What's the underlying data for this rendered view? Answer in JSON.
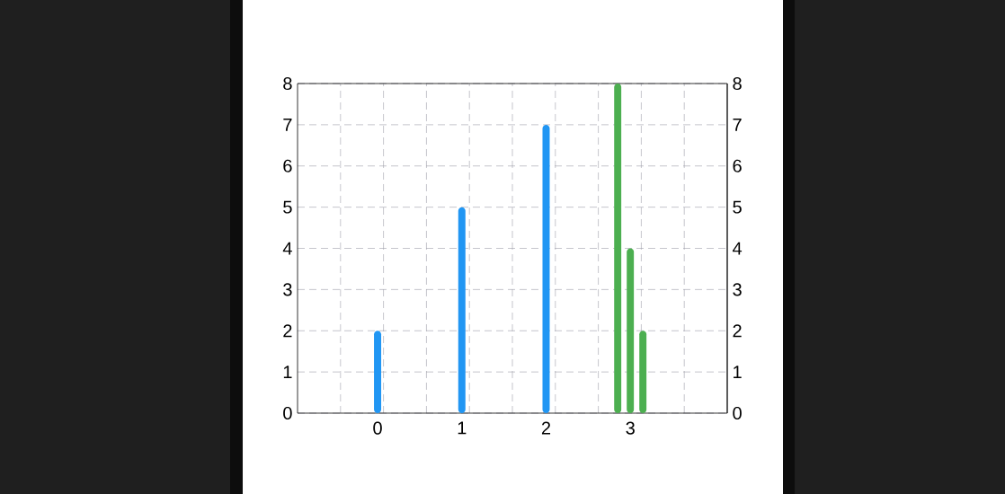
{
  "chart_data": {
    "type": "bar",
    "categories": [
      "0",
      "1",
      "2",
      "3"
    ],
    "series": [
      {
        "color": "#2196f3",
        "values": [
          2,
          5,
          7,
          null
        ]
      },
      {
        "color": "#4caf50",
        "values": [
          null,
          null,
          null,
          8
        ]
      },
      {
        "color": "#4caf50",
        "values": [
          null,
          null,
          null,
          4
        ]
      },
      {
        "color": "#4caf50",
        "values": [
          null,
          null,
          null,
          2
        ]
      }
    ],
    "ylim": [
      0,
      8
    ],
    "yticks": [
      0,
      1,
      2,
      3,
      4,
      5,
      6,
      7,
      8
    ],
    "y2lim": [
      0,
      8
    ],
    "y2ticks": [
      0,
      1,
      2,
      3,
      4,
      5,
      6,
      7,
      8
    ],
    "grid": true
  }
}
